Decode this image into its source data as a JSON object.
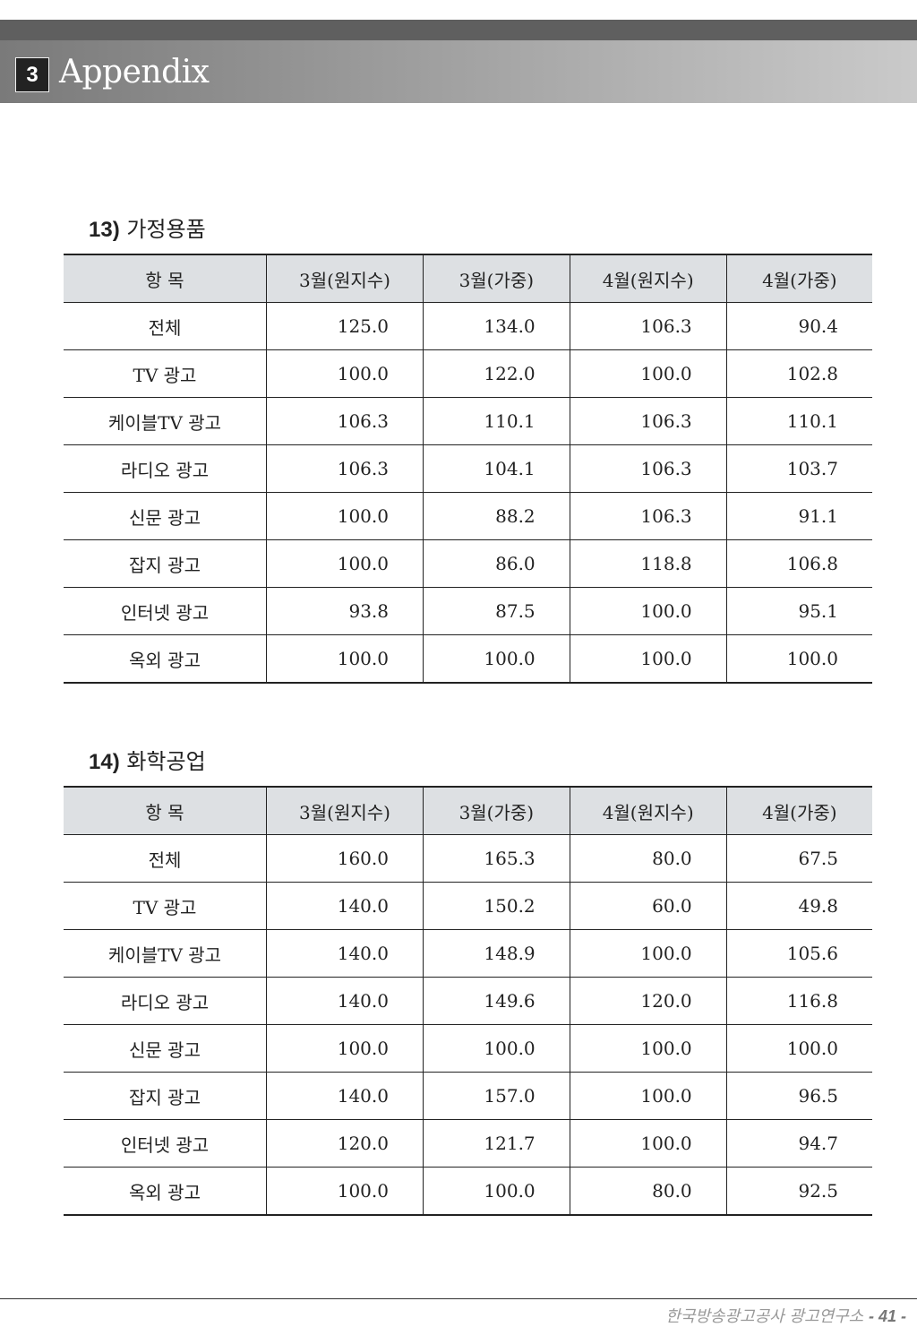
{
  "header": {
    "section_number": "3",
    "section_title": "Appendix"
  },
  "columns": [
    "항 목",
    "3월(원지수)",
    "3월(가중)",
    "4월(원지수)",
    "4월(가중)"
  ],
  "sections": [
    {
      "number": "13)",
      "title": "가정용품",
      "rows": [
        [
          "전체",
          "125.0",
          "134.0",
          "106.3",
          "90.4"
        ],
        [
          "TV 광고",
          "100.0",
          "122.0",
          "100.0",
          "102.8"
        ],
        [
          "케이블TV 광고",
          "106.3",
          "110.1",
          "106.3",
          "110.1"
        ],
        [
          "라디오 광고",
          "106.3",
          "104.1",
          "106.3",
          "103.7"
        ],
        [
          "신문 광고",
          "100.0",
          "88.2",
          "106.3",
          "91.1"
        ],
        [
          "잡지 광고",
          "100.0",
          "86.0",
          "118.8",
          "106.8"
        ],
        [
          "인터넷 광고",
          "93.8",
          "87.5",
          "100.0",
          "95.1"
        ],
        [
          "옥외 광고",
          "100.0",
          "100.0",
          "100.0",
          "100.0"
        ]
      ]
    },
    {
      "number": "14)",
      "title": "화학공업",
      "rows": [
        [
          "전체",
          "160.0",
          "165.3",
          "80.0",
          "67.5"
        ],
        [
          "TV 광고",
          "140.0",
          "150.2",
          "60.0",
          "49.8"
        ],
        [
          "케이블TV 광고",
          "140.0",
          "148.9",
          "100.0",
          "105.6"
        ],
        [
          "라디오 광고",
          "140.0",
          "149.6",
          "120.0",
          "116.8"
        ],
        [
          "신문 광고",
          "100.0",
          "100.0",
          "100.0",
          "100.0"
        ],
        [
          "잡지 광고",
          "140.0",
          "157.0",
          "100.0",
          "96.5"
        ],
        [
          "인터넷 광고",
          "120.0",
          "121.7",
          "100.0",
          "94.7"
        ],
        [
          "옥외 광고",
          "100.0",
          "100.0",
          "80.0",
          "92.5"
        ]
      ]
    }
  ],
  "footer": {
    "org": "한국방송광고공사 광고연구소",
    "page": "- 41 -"
  }
}
